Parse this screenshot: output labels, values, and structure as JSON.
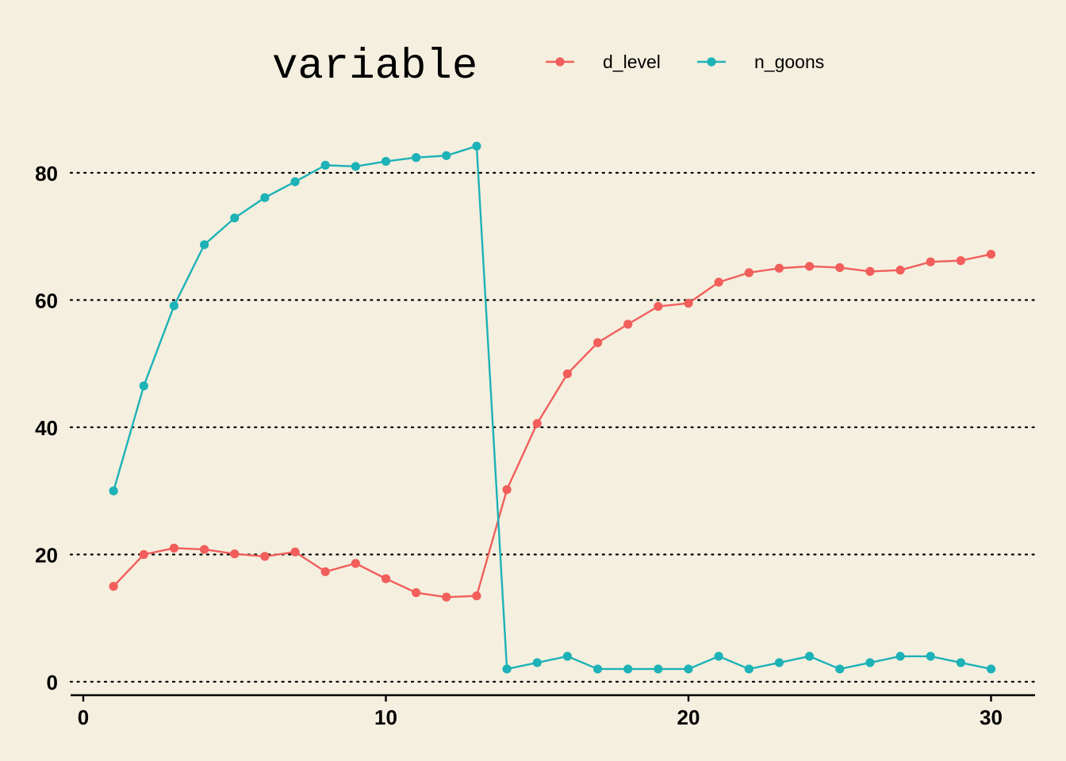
{
  "chart_data": {
    "type": "line",
    "title": "",
    "xlabel": "",
    "ylabel": "",
    "xlim": [
      0,
      31
    ],
    "ylim": [
      0,
      90
    ],
    "x_ticks": [
      "0",
      "10",
      "20",
      "30"
    ],
    "y_ticks": [
      "0",
      "20",
      "40",
      "60",
      "80"
    ],
    "grid": "horizontal dotted",
    "legend": {
      "placement": "top",
      "title": "variable",
      "entries": [
        "d_level",
        "n_goons"
      ]
    },
    "x": [
      1,
      2,
      3,
      4,
      5,
      6,
      7,
      8,
      9,
      10,
      11,
      12,
      13,
      14,
      15,
      16,
      17,
      18,
      19,
      20,
      21,
      22,
      23,
      24,
      25,
      26,
      27,
      28,
      29,
      30
    ],
    "series": [
      {
        "name": "d_level",
        "color": "#F15E5B",
        "values": [
          15,
          20,
          21,
          20.8,
          20.1,
          19.7,
          20.4,
          17.3,
          18.6,
          16.2,
          14,
          13.3,
          13.5,
          30.2,
          40.6,
          48.4,
          53.3,
          56.2,
          59,
          59.5,
          62.8,
          64.3,
          65,
          65.3,
          65.1,
          64.5,
          64.7,
          66,
          66.2,
          67.2
        ]
      },
      {
        "name": "n_goons",
        "color": "#1CB2B7",
        "values": [
          30,
          46.5,
          59.1,
          68.7,
          72.9,
          76.1,
          78.6,
          81.2,
          81,
          81.8,
          82.4,
          82.7,
          84.2,
          2,
          3,
          4,
          2,
          2,
          2,
          2,
          4,
          2,
          3,
          4,
          2,
          3,
          4,
          4,
          3,
          2
        ]
      }
    ]
  }
}
